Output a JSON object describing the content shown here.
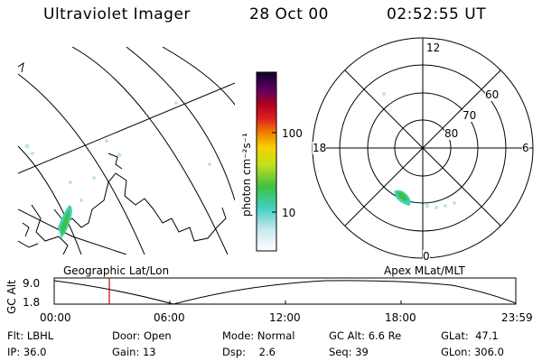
{
  "header": {
    "instrument": "Ultraviolet Imager",
    "date": "28 Oct 00",
    "time": "02:52:55 UT"
  },
  "colorbar": {
    "unit_label": "photon cm⁻²s⁻¹",
    "ticks": [
      "100",
      "10"
    ]
  },
  "polar_plot": {
    "mlt_labels": {
      "top": "12",
      "left": "18",
      "right": "6",
      "bottom": "0"
    },
    "lat_labels": [
      "60",
      "70",
      "80"
    ]
  },
  "timeline": {
    "left_title": "Geographic Lat/Lon",
    "right_title": "Apex MLat/MLT",
    "axis_label": "GC Alt",
    "y_labels": [
      "9.0",
      "1.8"
    ],
    "x_labels": [
      "00:00",
      "06:00",
      "12:00",
      "18:00",
      "23:59"
    ]
  },
  "footer": {
    "row1": [
      {
        "key": "Flt:",
        "value": "LBHL"
      },
      {
        "key": "Door:",
        "value": "Open"
      },
      {
        "key": "Mode:",
        "value": "Normal"
      },
      {
        "key": "GC Alt:",
        "value": "6.6 Re"
      },
      {
        "key": "GLat:",
        "value": "47.1"
      }
    ],
    "row2": [
      {
        "key": "IP:",
        "value": "36.0"
      },
      {
        "key": "Gain:",
        "value": "13"
      },
      {
        "key": "Dsp:",
        "value": "2.6"
      },
      {
        "key": "Seq:",
        "value": "39"
      },
      {
        "key": "GLon:",
        "value": "306.0"
      }
    ]
  },
  "colors": {
    "foreground": "#000000",
    "marker": "#cc0000",
    "aurora_faint": "#bfe8e0",
    "aurora_mid": "#40d0b0",
    "aurora_bright": "#40c040"
  }
}
